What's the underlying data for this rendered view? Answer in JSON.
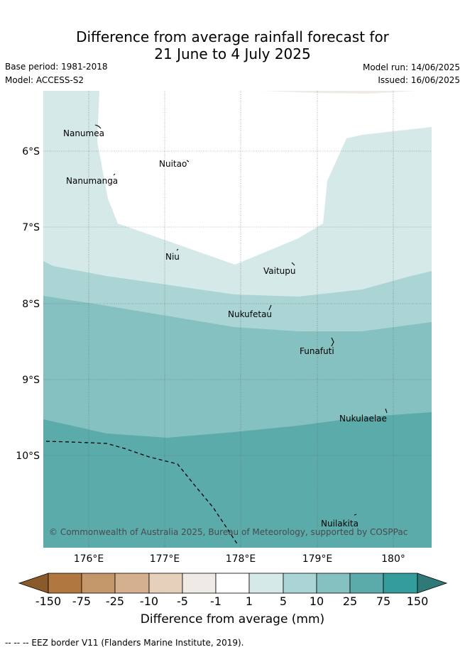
{
  "title_line1": "Difference from average rainfall forecast for",
  "title_line2": "21 June to 4 July 2025",
  "base_period": "Base period: 1981-2018",
  "model": "Model: ACCESS-S2",
  "model_run": "Model run: 14/06/2025",
  "issued": "Issued: 16/06/2025",
  "longitude_ticks": [
    "176°E",
    "177°E",
    "178°E",
    "179°E",
    "180°"
  ],
  "latitude_ticks": [
    "6°S",
    "7°S",
    "8°S",
    "9°S",
    "10°S"
  ],
  "places": [
    "Nanumea",
    "Nuitao",
    "Nanumanga",
    "Niu",
    "Vaitupu",
    "Nukufetau",
    "Funafuti",
    "Nukulaelae",
    "Nuilakita"
  ],
  "copyright": "© Commonwealth of Australia 2025, Bureau of Meteorology, supported by COSPPac",
  "colorbar": {
    "labels": [
      "-150",
      "-75",
      "-25",
      "-10",
      "-5",
      "-1",
      "1",
      "5",
      "10",
      "25",
      "75",
      "150"
    ],
    "colors": [
      "#8b5a2b",
      "#b07840",
      "#c4976b",
      "#d4b08e",
      "#e5d0bc",
      "#eeebe7",
      "#ffffff",
      "#d5e9e8",
      "#abd5d4",
      "#84c1c0",
      "#5aabaa",
      "#349c9b",
      "#2f7a79"
    ],
    "title": "Difference from average (mm)"
  },
  "footnote": "--  --  -- EEZ border V11 (Flanders Marine Institute, 2019)."
}
